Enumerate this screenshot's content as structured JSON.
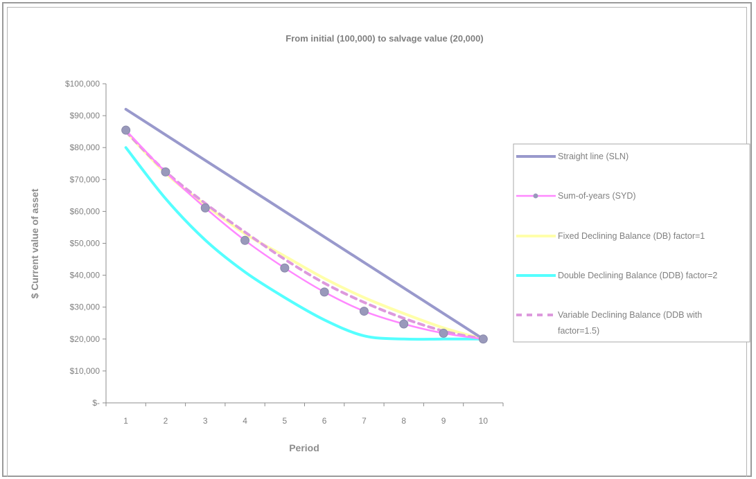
{
  "chart_data": {
    "type": "line",
    "title": "From initial (100,000) to salvage value (20,000)",
    "xlabel": "Period",
    "ylabel": "$ Current value of asset",
    "categories": [
      "1",
      "2",
      "3",
      "4",
      "5",
      "6",
      "7",
      "8",
      "9",
      "10"
    ],
    "yticks": [
      "$-",
      "$10,000",
      "$20,000",
      "$30,000",
      "$40,000",
      "$50,000",
      "$60,000",
      "$70,000",
      "$80,000",
      "$90,000",
      "$100,000"
    ],
    "ylim": [
      0,
      100000
    ],
    "grid": false,
    "legend_position": "right",
    "series": [
      {
        "name": "Straight line (SLN)",
        "color": "#9999cc",
        "style": "solid",
        "marker": false,
        "values": [
          92000,
          84000,
          76000,
          68000,
          60000,
          52000,
          44000,
          36000,
          28000,
          20000
        ]
      },
      {
        "name": "Sum-of-years (SYD)",
        "color": "#ff88ff",
        "style": "solid",
        "marker": true,
        "values": [
          85455,
          72364,
          61091,
          50909,
          42273,
          34727,
          28727,
          24727,
          21818,
          20000
        ]
      },
      {
        "name": "Fixed Declining Balance (DB) factor=1",
        "color": "#ffffaa",
        "style": "solid",
        "marker": false,
        "values": [
          85000,
          72000,
          62000,
          53000,
          46000,
          39000,
          33000,
          28000,
          23500,
          20000
        ]
      },
      {
        "name": "Double Declining Balance (DDB) factor=2",
        "color": "#55ffff",
        "style": "solid",
        "marker": false,
        "values": [
          80000,
          64000,
          51000,
          41000,
          33000,
          26000,
          21000,
          20000,
          20000,
          20000
        ]
      },
      {
        "name": "Variable Declining Balance (DDB with factor=1.5)",
        "color": "#dd99dd",
        "style": "dashed",
        "marker": false,
        "values": [
          85000,
          72500,
          62500,
          53500,
          45000,
          37500,
          31500,
          26500,
          22500,
          20000
        ]
      }
    ]
  }
}
